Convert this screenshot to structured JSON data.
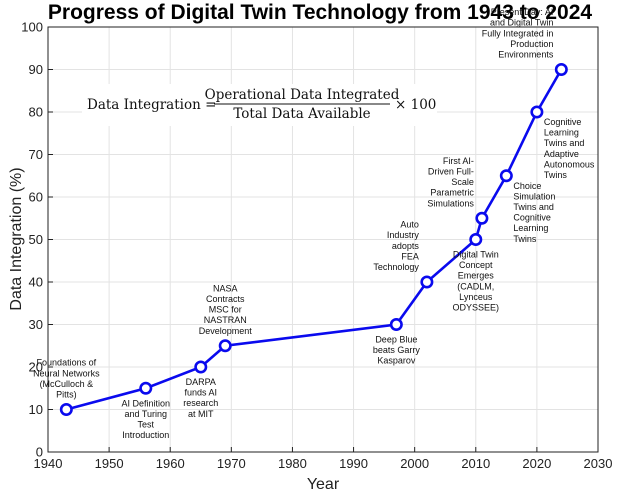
{
  "chart_data": {
    "type": "line",
    "title": "Progress of Digital Twin Technology from 1943 to 2024",
    "xlabel": "Year",
    "ylabel": "Data Integration (%)",
    "xlim": [
      1940,
      2030
    ],
    "ylim": [
      0,
      100
    ],
    "xticks": [
      "1940",
      "1950",
      "1960",
      "1970",
      "1980",
      "1990",
      "2000",
      "2010",
      "2020",
      "2030"
    ],
    "yticks": [
      "0",
      "10",
      "20",
      "30",
      "40",
      "50",
      "60",
      "70",
      "80",
      "90",
      "100"
    ],
    "grid": true,
    "line_color": "#0a0aee",
    "formula": {
      "lhs": "Data Integration =",
      "numerator": "Operational Data Integrated",
      "denominator": "Total Data Available",
      "multiplier": "× 100"
    },
    "points": [
      {
        "x": 1943,
        "y": 10,
        "label": [
          "Foundations of",
          "Neural Networks",
          "(McCulloch &",
          "Pitts)"
        ],
        "pos": "above"
      },
      {
        "x": 1956,
        "y": 15,
        "label": [
          "AI Definition",
          "and Turing",
          "Test",
          "Introduction"
        ],
        "pos": "below"
      },
      {
        "x": 1965,
        "y": 20,
        "label": [
          "DARPA",
          "funds AI",
          "research",
          "at MIT"
        ],
        "pos": "below"
      },
      {
        "x": 1969,
        "y": 25,
        "label": [
          "NASA",
          "Contracts",
          "MSC for",
          "NASTRAN",
          "Development"
        ],
        "pos": "above"
      },
      {
        "x": 1997,
        "y": 30,
        "label": [
          "Deep Blue",
          "beats Garry",
          "Kasparov"
        ],
        "pos": "below"
      },
      {
        "x": 2002,
        "y": 40,
        "label": [
          "Auto",
          "Industry",
          "adopts",
          "FEA",
          "Technology"
        ],
        "pos": "above-left"
      },
      {
        "x": 2010,
        "y": 50,
        "label": [
          "Digital Twin",
          "Concept",
          "Emerges",
          "(CADLM,",
          "Lynceus",
          "ODYSSEE)"
        ],
        "pos": "below"
      },
      {
        "x": 2011,
        "y": 55,
        "label": [
          "First AI-",
          "Driven Full-",
          "Scale",
          "Parametric",
          "Simulations"
        ],
        "pos": "above-left"
      },
      {
        "x": 2015,
        "y": 65,
        "label": [
          "Choice",
          "Simulation",
          "Twins and",
          "Cognitive",
          "Learning",
          "Twins"
        ],
        "pos": "below-right"
      },
      {
        "x": 2020,
        "y": 80,
        "label": [
          "Cognitive",
          "Learning",
          "Twins and",
          "Adaptive",
          "Autonomous",
          "Twins"
        ],
        "pos": "below-right"
      },
      {
        "x": 2024,
        "y": 90,
        "label": [
          "Present Day: AI",
          "and Digital Twin",
          "Fully Integrated in",
          "Production",
          "Environments"
        ],
        "pos": "above-left"
      }
    ]
  }
}
